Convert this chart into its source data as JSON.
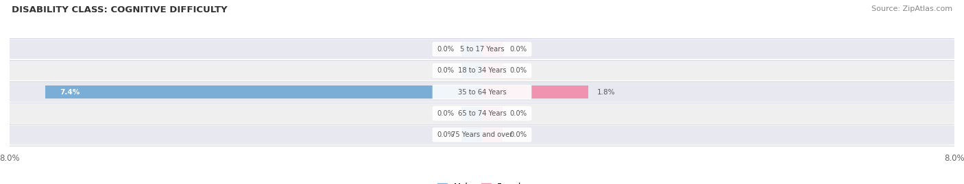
{
  "title": "DISABILITY CLASS: COGNITIVE DIFFICULTY",
  "source": "Source: ZipAtlas.com",
  "categories": [
    "5 to 17 Years",
    "18 to 34 Years",
    "35 to 64 Years",
    "65 to 74 Years",
    "75 Years and over"
  ],
  "male_values": [
    0.0,
    0.0,
    7.4,
    0.0,
    0.0
  ],
  "female_values": [
    0.0,
    0.0,
    1.8,
    0.0,
    0.0
  ],
  "xlim": 8.0,
  "male_color": "#7aaed6",
  "female_color": "#f093b0",
  "row_bg_color": "#e8e8f0",
  "row_alt_bg_color": "#efefef",
  "label_color": "#555555",
  "title_color": "#333333",
  "axis_label_color": "#666666",
  "legend_male_color": "#7aaed6",
  "legend_female_color": "#f093b0",
  "bg_color": "#ffffff",
  "zero_bar_size": 0.35
}
